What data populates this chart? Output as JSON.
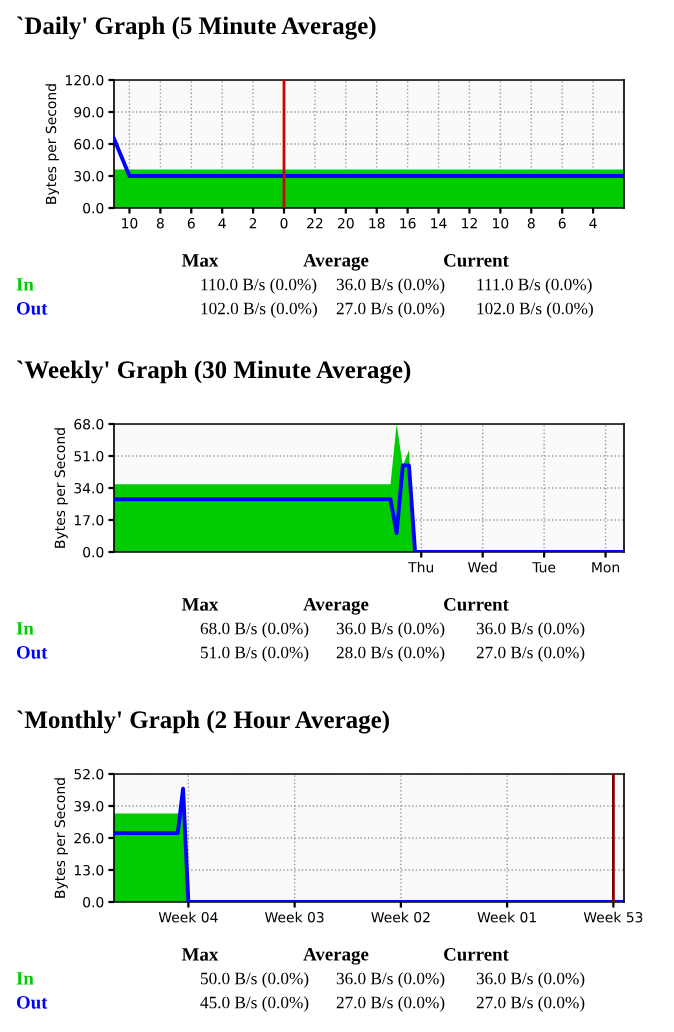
{
  "chart_data": [
    {
      "type": "area",
      "title": "`Daily' Graph (5 Minute Average)",
      "ylabel": "Bytes per Second",
      "categories": [
        null,
        "10",
        null,
        "8",
        null,
        "6",
        null,
        "4",
        null,
        "2",
        null,
        "0",
        null,
        "22",
        null,
        "20",
        null,
        "18",
        null,
        "16",
        null,
        "14",
        null,
        "12",
        null,
        "10",
        null,
        "8",
        null,
        "6",
        null,
        "4",
        null,
        null
      ],
      "series": [
        {
          "name": "In",
          "type": "area",
          "color": "#00cc00",
          "values": [
            36,
            36,
            36,
            36,
            36,
            36,
            36,
            36,
            36,
            36,
            36,
            36,
            36,
            36,
            36,
            36,
            36,
            36,
            36,
            36,
            36,
            36,
            36,
            36,
            36,
            36,
            36,
            36,
            36,
            36,
            36,
            36,
            36,
            36
          ]
        },
        {
          "name": "Out",
          "type": "line",
          "color": "#0000ff",
          "values": [
            65,
            30,
            30,
            30,
            30,
            30,
            30,
            30,
            30,
            30,
            30,
            30,
            30,
            30,
            30,
            30,
            30,
            30,
            30,
            30,
            30,
            30,
            30,
            30,
            30,
            30,
            30,
            30,
            30,
            30,
            30,
            30,
            30,
            30
          ]
        }
      ],
      "ylim": [
        0,
        120
      ],
      "yticks": [
        {
          "value": 0,
          "label": "0.0"
        },
        {
          "value": 30,
          "label": "30.0"
        },
        {
          "value": 60,
          "label": "60.0"
        },
        {
          "value": 90,
          "label": "90.0"
        },
        {
          "value": 120,
          "label": "120.0"
        }
      ],
      "ref_lines": [
        {
          "axis": "x",
          "value": "0",
          "color": "#cc0000"
        }
      ],
      "grid": true,
      "annotations": [
        "Max",
        "Average",
        "Current",
        "110.0 B/s (0.0%)",
        "36.0 B/s (0.0%)",
        "111.0 B/s (0.0%)",
        "102.0 B/s (0.0%)",
        "27.0 B/s (0.0%)",
        "102.0 B/s (0.0%)"
      ]
    },
    {
      "type": "area",
      "title": "`Weekly' Graph (30 Minute Average)",
      "ylabel": "Bytes per Second",
      "categories": [
        null,
        null,
        null,
        null,
        null,
        null,
        null,
        null,
        null,
        null,
        null,
        null,
        null,
        null,
        null,
        null,
        null,
        null,
        null,
        null,
        null,
        null,
        null,
        null,
        null,
        null,
        null,
        null,
        null,
        null,
        null,
        null,
        null,
        null,
        null,
        null,
        null,
        null,
        null,
        null,
        null,
        null,
        null,
        null,
        null,
        null,
        null,
        null,
        null,
        null,
        "Thu",
        null,
        null,
        null,
        null,
        null,
        null,
        null,
        null,
        null,
        "Wed",
        null,
        null,
        null,
        null,
        null,
        null,
        null,
        null,
        null,
        "Tue",
        null,
        null,
        null,
        null,
        null,
        null,
        null,
        null,
        null,
        "Mon",
        null,
        null,
        null
      ],
      "series": [
        {
          "name": "In",
          "type": "area",
          "color": "#00cc00",
          "values": [
            36,
            36,
            36,
            36,
            36,
            36,
            36,
            36,
            36,
            36,
            36,
            36,
            36,
            36,
            36,
            36,
            36,
            36,
            36,
            36,
            36,
            36,
            36,
            36,
            36,
            36,
            36,
            36,
            36,
            36,
            36,
            36,
            36,
            36,
            36,
            36,
            36,
            36,
            36,
            36,
            36,
            36,
            36,
            36,
            36,
            36,
            68,
            46,
            54,
            0,
            0,
            0,
            0,
            0,
            0,
            0,
            0,
            0,
            0,
            0,
            0,
            0,
            0,
            0,
            0,
            0,
            0,
            0,
            0,
            0,
            0,
            0,
            0,
            0,
            0,
            0,
            0,
            0,
            0,
            0,
            0,
            0,
            0,
            0
          ]
        },
        {
          "name": "Out",
          "type": "line",
          "color": "#0000ff",
          "values": [
            28,
            28,
            28,
            28,
            28,
            28,
            28,
            28,
            28,
            28,
            28,
            28,
            28,
            28,
            28,
            28,
            28,
            28,
            28,
            28,
            28,
            28,
            28,
            28,
            28,
            28,
            28,
            28,
            28,
            28,
            28,
            28,
            28,
            28,
            28,
            28,
            28,
            28,
            28,
            28,
            28,
            28,
            28,
            28,
            28,
            28,
            10,
            46,
            46,
            0,
            0,
            0,
            0,
            0,
            0,
            0,
            0,
            0,
            0,
            0,
            0,
            0,
            0,
            0,
            0,
            0,
            0,
            0,
            0,
            0,
            0,
            0,
            0,
            0,
            0,
            0,
            0,
            0,
            0,
            0,
            0,
            0,
            0,
            0
          ]
        }
      ],
      "ylim": [
        0,
        68
      ],
      "yticks": [
        {
          "value": 0,
          "label": "0.0"
        },
        {
          "value": 17,
          "label": "17.0"
        },
        {
          "value": 34,
          "label": "34.0"
        },
        {
          "value": 51,
          "label": "51.0"
        },
        {
          "value": 68,
          "label": "68.0"
        }
      ],
      "grid": true,
      "annotations": [
        "Max",
        "Average",
        "Current",
        "68.0 B/s (0.0%)",
        "36.0 B/s (0.0%)",
        "36.0 B/s (0.0%)",
        "51.0 B/s (0.0%)",
        "28.0 B/s (0.0%)",
        "27.0 B/s (0.0%)"
      ]
    },
    {
      "type": "area",
      "title": "`Monthly' Graph (2 Hour Average)",
      "ylabel": "Bytes per Second",
      "categories": [
        null,
        null,
        null,
        null,
        null,
        null,
        null,
        null,
        null,
        null,
        null,
        null,
        null,
        null,
        "Week 04",
        null,
        null,
        null,
        null,
        null,
        null,
        null,
        null,
        null,
        null,
        null,
        null,
        null,
        null,
        null,
        null,
        null,
        null,
        null,
        "Week 03",
        null,
        null,
        null,
        null,
        null,
        null,
        null,
        null,
        null,
        null,
        null,
        null,
        null,
        null,
        null,
        null,
        null,
        null,
        null,
        "Week 02",
        null,
        null,
        null,
        null,
        null,
        null,
        null,
        null,
        null,
        null,
        null,
        null,
        null,
        null,
        null,
        null,
        null,
        null,
        null,
        "Week 01",
        null,
        null,
        null,
        null,
        null,
        null,
        null,
        null,
        null,
        null,
        null,
        null,
        null,
        null,
        null,
        null,
        null,
        null,
        null,
        "Week 53",
        null,
        null
      ],
      "series": [
        {
          "name": "In",
          "type": "area",
          "color": "#00cc00",
          "values": [
            36,
            36,
            36,
            36,
            36,
            36,
            36,
            36,
            36,
            36,
            36,
            36,
            36,
            36,
            0,
            0,
            0,
            0,
            0,
            0,
            0,
            0,
            0,
            0,
            0,
            0,
            0,
            0,
            0,
            0,
            0,
            0,
            0,
            0,
            0,
            0,
            0,
            0,
            0,
            0,
            0,
            0,
            0,
            0,
            0,
            0,
            0,
            0,
            0,
            0,
            0,
            0,
            0,
            0,
            0,
            0,
            0,
            0,
            0,
            0,
            0,
            0,
            0,
            0,
            0,
            0,
            0,
            0,
            0,
            0,
            0,
            0,
            0,
            0,
            0,
            0,
            0,
            0,
            0,
            0,
            0,
            0,
            0,
            0,
            0,
            0,
            0,
            0,
            0,
            0,
            0,
            0,
            0,
            0,
            0,
            0,
            0
          ]
        },
        {
          "name": "Out",
          "type": "line",
          "color": "#0000ff",
          "values": [
            28,
            28,
            28,
            28,
            28,
            28,
            28,
            28,
            28,
            28,
            28,
            28,
            28,
            46,
            0,
            0,
            0,
            0,
            0,
            0,
            0,
            0,
            0,
            0,
            0,
            0,
            0,
            0,
            0,
            0,
            0,
            0,
            0,
            0,
            0,
            0,
            0,
            0,
            0,
            0,
            0,
            0,
            0,
            0,
            0,
            0,
            0,
            0,
            0,
            0,
            0,
            0,
            0,
            0,
            0,
            0,
            0,
            0,
            0,
            0,
            0,
            0,
            0,
            0,
            0,
            0,
            0,
            0,
            0,
            0,
            0,
            0,
            0,
            0,
            0,
            0,
            0,
            0,
            0,
            0,
            0,
            0,
            0,
            0,
            0,
            0,
            0,
            0,
            0,
            0,
            0,
            0,
            0,
            0,
            0,
            0,
            0
          ]
        }
      ],
      "ylim": [
        0,
        52
      ],
      "yticks": [
        {
          "value": 0,
          "label": "0.0"
        },
        {
          "value": 13,
          "label": "13.0"
        },
        {
          "value": 26,
          "label": "26.0"
        },
        {
          "value": 39,
          "label": "39.0"
        },
        {
          "value": 52,
          "label": "52.0"
        }
      ],
      "ref_lines": [
        {
          "axis": "x",
          "value": "Week 53",
          "color": "#800000"
        }
      ],
      "grid": true,
      "annotations": [
        "Max",
        "Average",
        "Current",
        "50.0 B/s (0.0%)",
        "36.0 B/s (0.0%)",
        "36.0 B/s (0.0%)",
        "45.0 B/s (0.0%)",
        "27.0 B/s (0.0%)",
        "27.0 B/s (0.0%)"
      ]
    }
  ]
}
